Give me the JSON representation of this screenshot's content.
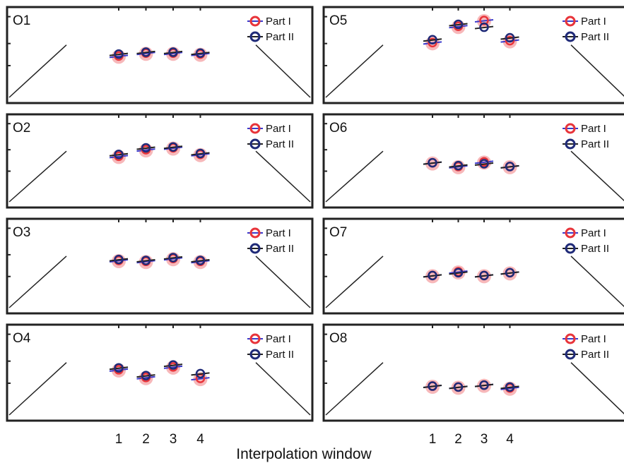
{
  "chart_data": {
    "type": "scatter",
    "xlabel": "Interpolation window",
    "tick_labels": [
      "1",
      "2",
      "3",
      "4"
    ],
    "x": [
      1,
      2,
      3,
      4
    ],
    "ylim": [
      0,
      1
    ],
    "legend": [
      "Part I",
      "Part II"
    ],
    "colors": {
      "part1": "#e8343a",
      "part2": "#1f2a78",
      "line": "#222222"
    },
    "panels": [
      {
        "label": "O1",
        "part1": [
          0.49,
          0.52,
          0.52,
          0.51
        ],
        "part2": [
          0.51,
          0.53,
          0.53,
          0.52
        ]
      },
      {
        "label": "O2",
        "part1": [
          0.55,
          0.62,
          0.64,
          0.57
        ],
        "part2": [
          0.57,
          0.64,
          0.65,
          0.58
        ]
      },
      {
        "label": "O3",
        "part1": [
          0.56,
          0.55,
          0.58,
          0.55
        ],
        "part2": [
          0.57,
          0.56,
          0.59,
          0.56
        ]
      },
      {
        "label": "O4",
        "part1": [
          0.53,
          0.45,
          0.56,
          0.44
        ],
        "part2": [
          0.55,
          0.47,
          0.58,
          0.49
        ]
      },
      {
        "label": "O5",
        "part1": [
          0.63,
          0.8,
          0.86,
          0.65
        ],
        "part2": [
          0.66,
          0.82,
          0.79,
          0.68
        ]
      },
      {
        "label": "O6",
        "part1": [
          0.48,
          0.44,
          0.49,
          0.44
        ],
        "part2": [
          0.48,
          0.45,
          0.47,
          0.44
        ]
      },
      {
        "label": "O7",
        "part1": [
          0.4,
          0.44,
          0.4,
          0.43
        ],
        "part2": [
          0.4,
          0.43,
          0.4,
          0.43
        ]
      },
      {
        "label": "O8",
        "part1": [
          0.36,
          0.35,
          0.37,
          0.34
        ],
        "part2": [
          0.36,
          0.35,
          0.37,
          0.35
        ]
      }
    ]
  }
}
